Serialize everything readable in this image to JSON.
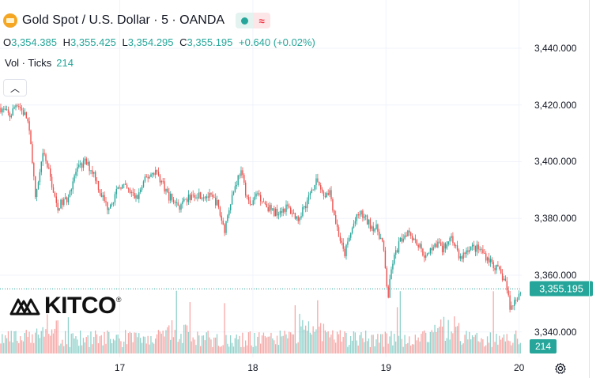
{
  "header": {
    "title": "Gold Spot / U.S. Dollar · 5 · OANDA",
    "ohlc": [
      {
        "key": "O",
        "value": "3,354.385"
      },
      {
        "key": "H",
        "value": "3,355.425"
      },
      {
        "key": "L",
        "value": "3,354.295"
      },
      {
        "key": "C",
        "value": "3,355.195"
      }
    ],
    "change": "+0.640 (+0.02%)",
    "volume_label": "Vol · Ticks",
    "volume_value": "214"
  },
  "brand": {
    "name": "KITCO",
    "mark": "®"
  },
  "colors": {
    "up": "#26a69a",
    "down": "#ef5350",
    "grid": "#f0f3fa",
    "accent_gold": "#f5a623"
  },
  "icons": {
    "coin": "gold-coin-icon",
    "settings": "gear-icon",
    "collapse": "chevron-up-icon"
  },
  "chart_data": {
    "type": "candlestick",
    "title": "Gold Spot / U.S. Dollar · 5 · OANDA",
    "timeframe": "5",
    "last_price": "3,355.195",
    "last_volume": "214",
    "ylim": [
      3331,
      3457
    ],
    "yticks": [
      "3,440.000",
      "3,420.000",
      "3,400.000",
      "3,380.000",
      "3,360.000",
      "3,340.000"
    ],
    "ytick_values": [
      3440,
      3420,
      3400,
      3380,
      3360,
      3340
    ],
    "xticks": [
      "17",
      "18",
      "19",
      "20"
    ],
    "xtick_positions": [
      17,
      18,
      19,
      20
    ],
    "xlim": [
      16.1,
      20.02
    ],
    "grid": true,
    "series_path": [
      [
        16.1,
        3419
      ],
      [
        16.17,
        3416
      ],
      [
        16.22,
        3421
      ],
      [
        16.3,
        3415
      ],
      [
        16.34,
        3400
      ],
      [
        16.36,
        3386
      ],
      [
        16.42,
        3403
      ],
      [
        16.47,
        3395
      ],
      [
        16.52,
        3384
      ],
      [
        16.6,
        3387
      ],
      [
        16.66,
        3396
      ],
      [
        16.73,
        3400
      ],
      [
        16.8,
        3396
      ],
      [
        16.85,
        3389
      ],
      [
        16.9,
        3384
      ],
      [
        16.96,
        3388
      ],
      [
        17.0,
        3392
      ],
      [
        17.05,
        3390
      ],
      [
        17.12,
        3387
      ],
      [
        17.19,
        3394
      ],
      [
        17.26,
        3397
      ],
      [
        17.32,
        3392
      ],
      [
        17.36,
        3388
      ],
      [
        17.45,
        3384
      ],
      [
        17.55,
        3389
      ],
      [
        17.65,
        3388
      ],
      [
        17.72,
        3386
      ],
      [
        17.78,
        3376
      ],
      [
        17.83,
        3387
      ],
      [
        17.9,
        3397
      ],
      [
        17.97,
        3384
      ],
      [
        18.03,
        3389
      ],
      [
        18.09,
        3385
      ],
      [
        18.15,
        3382
      ],
      [
        18.25,
        3384
      ],
      [
        18.33,
        3380
      ],
      [
        18.4,
        3386
      ],
      [
        18.47,
        3394
      ],
      [
        18.53,
        3388
      ],
      [
        18.57,
        3390
      ],
      [
        18.62,
        3378
      ],
      [
        18.68,
        3367
      ],
      [
        18.75,
        3378
      ],
      [
        18.8,
        3382
      ],
      [
        18.87,
        3378
      ],
      [
        18.93,
        3376
      ],
      [
        18.97,
        3371
      ],
      [
        19.01,
        3352
      ],
      [
        19.04,
        3364
      ],
      [
        19.1,
        3372
      ],
      [
        19.16,
        3376
      ],
      [
        19.22,
        3372
      ],
      [
        19.3,
        3366
      ],
      [
        19.36,
        3372
      ],
      [
        19.42,
        3369
      ],
      [
        19.48,
        3374
      ],
      [
        19.55,
        3366
      ],
      [
        19.62,
        3370
      ],
      [
        19.7,
        3369
      ],
      [
        19.76,
        3366
      ],
      [
        19.83,
        3362
      ],
      [
        19.89,
        3358
      ],
      [
        19.93,
        3348
      ],
      [
        19.97,
        3352
      ],
      [
        20.02,
        3355.195
      ]
    ],
    "volume_axis_label": "214"
  }
}
